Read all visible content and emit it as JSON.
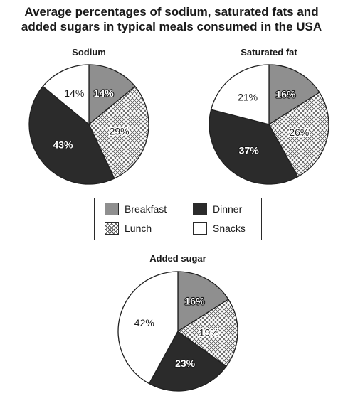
{
  "title_line1": "Average percentages of sodium, saturated fats and",
  "title_line2": "added sugars in typical meals consumed in the USA",
  "colors": {
    "Breakfast": "#8f8f8f",
    "Lunch": "crosshatch",
    "Dinner": "#2b2b2b",
    "Snacks": "#ffffff"
  },
  "legend": [
    {
      "label": "Breakfast",
      "key": "breakfast"
    },
    {
      "label": "Dinner",
      "key": "dinner"
    },
    {
      "label": "Lunch",
      "key": "lunch"
    },
    {
      "label": "Snacks",
      "key": "snacks"
    }
  ],
  "chart_data": [
    {
      "type": "pie",
      "title": "Sodium",
      "slices": [
        {
          "label": "Breakfast",
          "value": 14,
          "text": "14%"
        },
        {
          "label": "Lunch",
          "value": 29,
          "text": "29%"
        },
        {
          "label": "Dinner",
          "value": 43,
          "text": "43%"
        },
        {
          "label": "Snacks",
          "value": 14,
          "text": "14%"
        }
      ]
    },
    {
      "type": "pie",
      "title": "Saturated fat",
      "slices": [
        {
          "label": "Breakfast",
          "value": 16,
          "text": "16%"
        },
        {
          "label": "Lunch",
          "value": 26,
          "text": "26%"
        },
        {
          "label": "Dinner",
          "value": 37,
          "text": "37%"
        },
        {
          "label": "Snacks",
          "value": 21,
          "text": "21%"
        }
      ]
    },
    {
      "type": "pie",
      "title": "Added sugar",
      "slices": [
        {
          "label": "Breakfast",
          "value": 16,
          "text": "16%"
        },
        {
          "label": "Lunch",
          "value": 19,
          "text": "19%"
        },
        {
          "label": "Dinner",
          "value": 23,
          "text": "23%"
        },
        {
          "label": "Snacks",
          "value": 42,
          "text": "42%"
        }
      ]
    }
  ]
}
